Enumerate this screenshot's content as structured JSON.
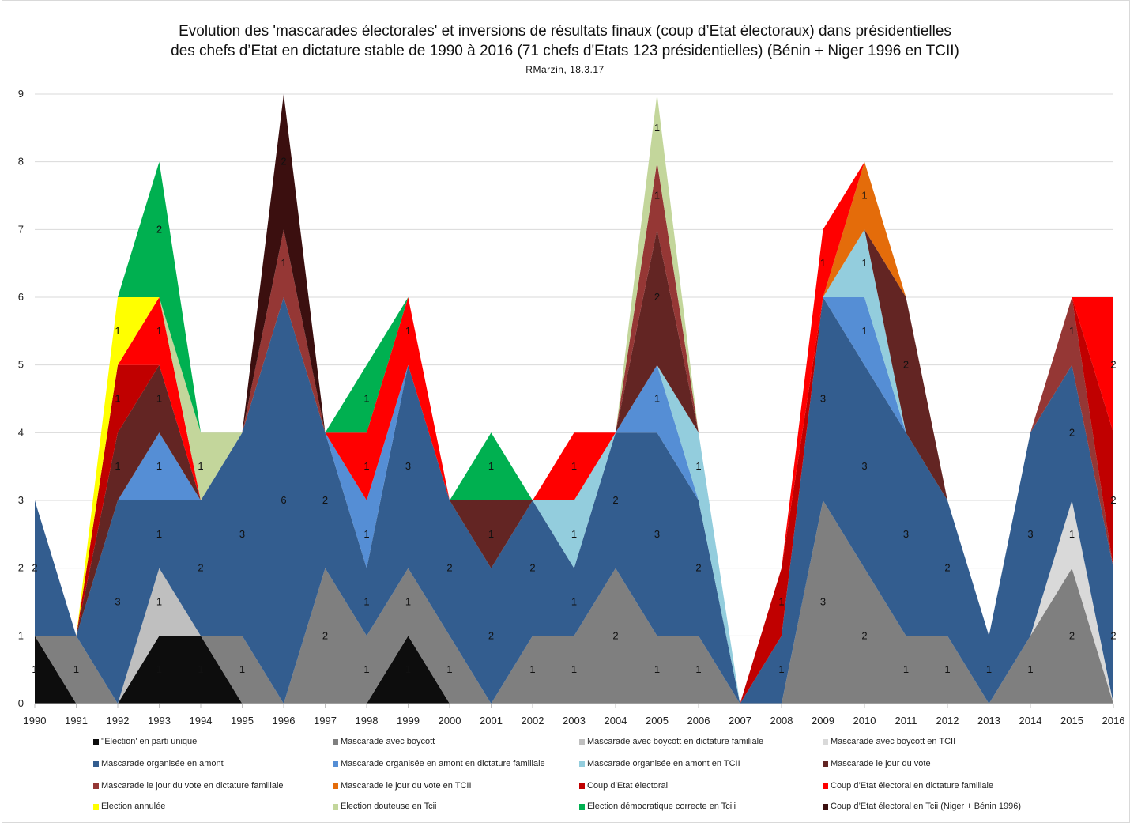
{
  "title": "Evolution des 'mascarades électorales' et inversions de résultats finaux (coup d’Etat électoraux) dans présidentielles",
  "title_line2": "des chefs d’Etat en dictature stable  de 1990 à 2016 (71 chefs d'Etats 123 présidentielles) (Bénin + Niger 1996 en TCII)",
  "credit": "RMarzin, 18.3.17",
  "chart_data": {
    "type": "area",
    "stacked": true,
    "x": [
      "1990",
      "1991",
      "1992",
      "1993",
      "1994",
      "1995",
      "1996",
      "1997",
      "1998",
      "1999",
      "2000",
      "2001",
      "2002",
      "2003",
      "2004",
      "2005",
      "2006",
      "2007",
      "2008",
      "2009",
      "2010",
      "2011",
      "2012",
      "2013",
      "2014",
      "2015",
      "2016"
    ],
    "ylim": [
      0,
      9
    ],
    "yticks": [
      "0",
      "1",
      "2",
      "3",
      "4",
      "5",
      "6",
      "7",
      "8",
      "9"
    ],
    "grid": true,
    "legend_position": "bottom",
    "series": [
      {
        "name": "''Election' en parti unique",
        "color": "#0d0d0d",
        "values": [
          1,
          0,
          0,
          1,
          1,
          0,
          0,
          0,
          0,
          1,
          0,
          0,
          0,
          0,
          0,
          0,
          0,
          0,
          0,
          0,
          0,
          0,
          0,
          0,
          0,
          0,
          0
        ]
      },
      {
        "name": "Mascarade avec boycott",
        "color": "#7f7f7f",
        "values": [
          0,
          1,
          0,
          0,
          0,
          1,
          0,
          2,
          1,
          1,
          1,
          0,
          1,
          1,
          2,
          1,
          1,
          0,
          0,
          3,
          2,
          1,
          1,
          0,
          1,
          2,
          0
        ]
      },
      {
        "name": "Mascarade avec boycott en dictature familiale",
        "color": "#bfbfbf",
        "values": [
          0,
          0,
          0,
          1,
          0,
          0,
          0,
          0,
          0,
          0,
          0,
          0,
          0,
          0,
          0,
          0,
          0,
          0,
          0,
          0,
          0,
          0,
          0,
          0,
          0,
          0,
          0
        ]
      },
      {
        "name": "Mascarade avec boycott en TCII",
        "color": "#d9d9d9",
        "values": [
          0,
          0,
          0,
          0,
          0,
          0,
          0,
          0,
          0,
          0,
          0,
          0,
          0,
          0,
          0,
          0,
          0,
          0,
          0,
          0,
          0,
          0,
          0,
          0,
          0,
          1,
          0
        ]
      },
      {
        "name": "Mascarade organisée en amont",
        "color": "#335d8f",
        "values": [
          2,
          0,
          3,
          1,
          2,
          3,
          6,
          2,
          1,
          3,
          2,
          2,
          2,
          1,
          2,
          3,
          2,
          0,
          1,
          3,
          3,
          3,
          2,
          1,
          3,
          2,
          2
        ]
      },
      {
        "name": "Mascarade organisée en amont en dictature familiale",
        "color": "#558ed5",
        "values": [
          0,
          0,
          0,
          1,
          0,
          0,
          0,
          0,
          1,
          0,
          0,
          0,
          0,
          0,
          0,
          1,
          0,
          0,
          0,
          0,
          1,
          0,
          0,
          0,
          0,
          0,
          0
        ]
      },
      {
        "name": "Mascarade organisée en amont en TCII",
        "color": "#93cddd",
        "values": [
          0,
          0,
          0,
          0,
          0,
          0,
          0,
          0,
          0,
          0,
          0,
          0,
          0,
          1,
          0,
          0,
          1,
          0,
          0,
          0,
          1,
          0,
          0,
          0,
          0,
          0,
          0
        ]
      },
      {
        "name": "Mascarade le jour du vote",
        "color": "#632523",
        "values": [
          0,
          0,
          1,
          1,
          0,
          0,
          0,
          0,
          0,
          0,
          0,
          1,
          0,
          0,
          0,
          2,
          0,
          0,
          0,
          0,
          0,
          2,
          0,
          0,
          0,
          0,
          0
        ]
      },
      {
        "name": "Mascarade le jour du vote en dictature familiale",
        "color": "#953735",
        "values": [
          0,
          0,
          0,
          0,
          0,
          0,
          1,
          0,
          0,
          0,
          0,
          0,
          0,
          0,
          0,
          1,
          0,
          0,
          0,
          0,
          0,
          0,
          0,
          0,
          0,
          1,
          0
        ]
      },
      {
        "name": "Mascarade le jour du vote en TCII",
        "color": "#e46c0a",
        "values": [
          0,
          0,
          0,
          0,
          0,
          0,
          0,
          0,
          0,
          0,
          0,
          0,
          0,
          0,
          0,
          0,
          0,
          0,
          0,
          0,
          1,
          0,
          0,
          0,
          0,
          0,
          0
        ]
      },
      {
        "name": "Coup d’Etat électoral",
        "color": "#c00000",
        "values": [
          0,
          0,
          1,
          0,
          0,
          0,
          0,
          0,
          0,
          0,
          0,
          0,
          0,
          0,
          0,
          0,
          0,
          0,
          1,
          0,
          0,
          0,
          0,
          0,
          0,
          0,
          2
        ]
      },
      {
        "name": "Coup d’Etat électoral  en dictature  familiale",
        "color": "#ff0000",
        "values": [
          0,
          0,
          0,
          1,
          0,
          0,
          0,
          0,
          1,
          1,
          0,
          0,
          0,
          1,
          0,
          0,
          0,
          0,
          0,
          1,
          0,
          0,
          0,
          0,
          0,
          0,
          2
        ]
      },
      {
        "name": "Election annulée",
        "color": "#ffff00",
        "values": [
          0,
          0,
          1,
          0,
          0,
          0,
          0,
          0,
          0,
          0,
          0,
          0,
          0,
          0,
          0,
          0,
          0,
          0,
          0,
          0,
          0,
          0,
          0,
          0,
          0,
          0,
          0
        ]
      },
      {
        "name": "Election douteuse en Tcii",
        "color": "#c3d69b",
        "values": [
          0,
          0,
          0,
          0,
          1,
          0,
          0,
          0,
          0,
          0,
          0,
          0,
          0,
          0,
          0,
          1,
          0,
          0,
          0,
          0,
          0,
          0,
          0,
          0,
          0,
          0,
          0
        ]
      },
      {
        "name": "Election démocratique correcte en Tciii",
        "color": "#00b050",
        "values": [
          0,
          0,
          0,
          2,
          0,
          0,
          0,
          0,
          1,
          0,
          0,
          1,
          0,
          0,
          0,
          0,
          0,
          0,
          0,
          0,
          0,
          0,
          0,
          0,
          0,
          0,
          0
        ]
      },
      {
        "name": "Coup d’Etat électoral  en Tcii (Niger + Bénin 1996)",
        "color": "#3b0f0f",
        "values": [
          0,
          0,
          0,
          0,
          0,
          0,
          2,
          0,
          0,
          0,
          0,
          0,
          0,
          0,
          0,
          0,
          0,
          0,
          0,
          0,
          0,
          0,
          0,
          0,
          0,
          0,
          0
        ]
      }
    ]
  }
}
